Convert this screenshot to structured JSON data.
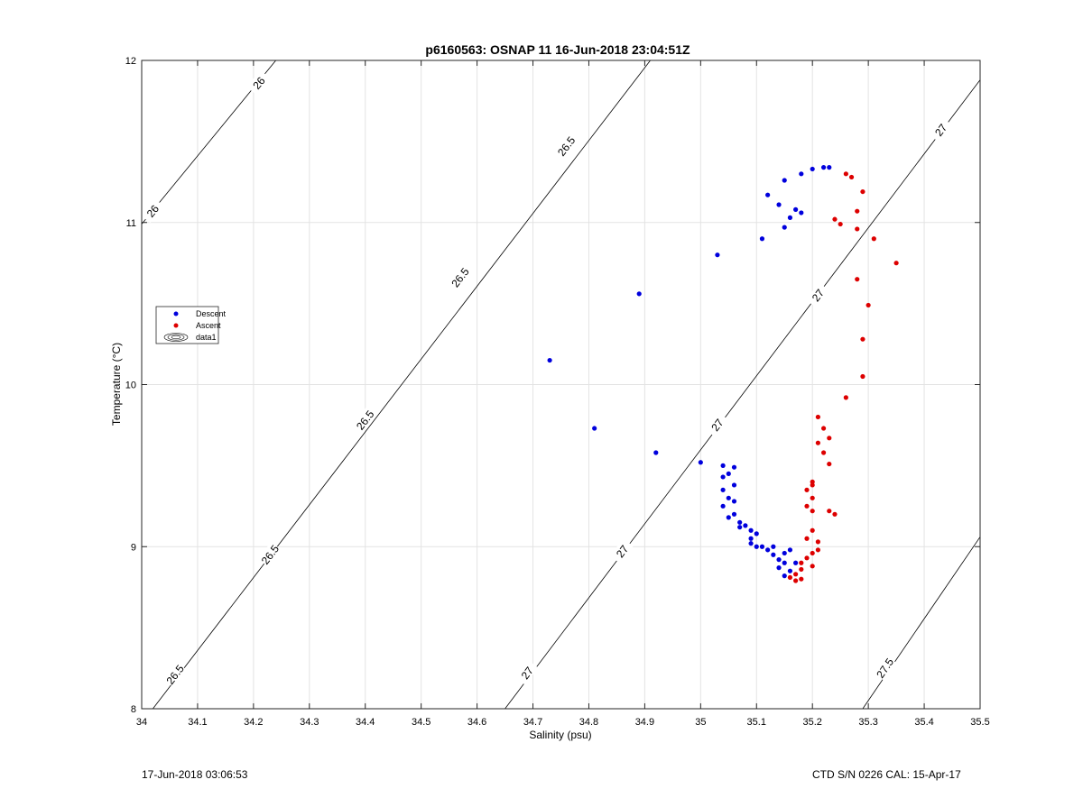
{
  "footer": {
    "left": "17-Jun-2018 03:06:53",
    "right": "CTD S/N 0226  CAL: 15-Apr-17"
  },
  "chart_data": {
    "type": "scatter",
    "title": "p6160563: OSNAP 11 16-Jun-2018 23:04:51Z",
    "xlabel": "Salinity (psu)",
    "ylabel": "Temperature (°C)",
    "xlim": [
      34,
      35.5
    ],
    "ylim": [
      8,
      12
    ],
    "xticks": [
      "34",
      "34.1",
      "34.2",
      "34.3",
      "34.4",
      "34.5",
      "34.6",
      "34.7",
      "34.8",
      "34.9",
      "35",
      "35.1",
      "35.2",
      "35.3",
      "35.4",
      "35.5"
    ],
    "yticks": [
      "8",
      "9",
      "10",
      "11",
      "12"
    ],
    "grid": true,
    "legend": {
      "placement": "left",
      "entries": [
        {
          "label": "Descent",
          "color": "#0000dd",
          "marker": "dot"
        },
        {
          "label": "Ascent",
          "color": "#dd0000",
          "marker": "dot"
        },
        {
          "label": "data1",
          "marker": "contour-icon"
        }
      ]
    },
    "density_contours": [
      {
        "sigma": "26",
        "lines": [
          [
            34,
            10.99,
            34.24,
            12
          ]
        ],
        "labels": [
          [
            34.02,
            11.07
          ],
          [
            34.21,
            11.86
          ]
        ]
      },
      {
        "sigma": "26.5",
        "lines": [
          [
            34.02,
            8,
            34.91,
            12
          ]
        ],
        "labels": [
          [
            34.06,
            8.21
          ],
          [
            34.23,
            8.95
          ],
          [
            34.4,
            9.78
          ],
          [
            34.57,
            10.66
          ],
          [
            34.76,
            11.47
          ]
        ]
      },
      {
        "sigma": "27",
        "lines": [
          [
            34.65,
            8,
            35.5,
            11.88
          ]
        ],
        "labels": [
          [
            34.69,
            8.22
          ],
          [
            34.86,
            8.97
          ],
          [
            35.03,
            9.75
          ],
          [
            35.21,
            10.55
          ],
          [
            35.43,
            11.57
          ]
        ]
      },
      {
        "sigma": "27.5",
        "lines": [
          [
            35.29,
            8,
            35.5,
            9.06
          ]
        ],
        "labels": [
          [
            35.33,
            8.25
          ]
        ]
      }
    ],
    "series": [
      {
        "name": "Descent",
        "color": "#0000dd",
        "points": [
          [
            34.73,
            10.15
          ],
          [
            34.81,
            9.73
          ],
          [
            34.89,
            10.56
          ],
          [
            34.92,
            9.58
          ],
          [
            35.0,
            9.52
          ],
          [
            35.03,
            10.8
          ],
          [
            35.11,
            10.9
          ],
          [
            35.12,
            11.17
          ],
          [
            35.14,
            11.11
          ],
          [
            35.15,
            11.26
          ],
          [
            35.15,
            10.97
          ],
          [
            35.16,
            11.03
          ],
          [
            35.17,
            11.08
          ],
          [
            35.18,
            11.06
          ],
          [
            35.18,
            11.3
          ],
          [
            35.2,
            11.33
          ],
          [
            35.22,
            11.34
          ],
          [
            35.23,
            11.34
          ],
          [
            35.04,
            9.5
          ],
          [
            35.04,
            9.43
          ],
          [
            35.04,
            9.35
          ],
          [
            35.05,
            9.45
          ],
          [
            35.05,
            9.3
          ],
          [
            35.04,
            9.25
          ],
          [
            35.05,
            9.18
          ],
          [
            35.06,
            9.49
          ],
          [
            35.06,
            9.38
          ],
          [
            35.06,
            9.28
          ],
          [
            35.06,
            9.2
          ],
          [
            35.07,
            9.15
          ],
          [
            35.07,
            9.12
          ],
          [
            35.08,
            9.13
          ],
          [
            35.09,
            9.1
          ],
          [
            35.09,
            9.05
          ],
          [
            35.1,
            9.08
          ],
          [
            35.09,
            9.02
          ],
          [
            35.1,
            9.0
          ],
          [
            35.11,
            9.0
          ],
          [
            35.12,
            8.98
          ],
          [
            35.13,
            8.95
          ],
          [
            35.13,
            9.0
          ],
          [
            35.14,
            8.92
          ],
          [
            35.14,
            8.87
          ],
          [
            35.15,
            8.82
          ],
          [
            35.15,
            8.9
          ],
          [
            35.15,
            8.96
          ],
          [
            35.16,
            8.85
          ],
          [
            35.16,
            8.98
          ],
          [
            35.17,
            8.9
          ]
        ]
      },
      {
        "name": "Ascent",
        "color": "#dd0000",
        "points": [
          [
            35.26,
            11.3
          ],
          [
            35.27,
            11.28
          ],
          [
            35.29,
            11.19
          ],
          [
            35.28,
            11.07
          ],
          [
            35.24,
            11.02
          ],
          [
            35.25,
            10.99
          ],
          [
            35.28,
            10.96
          ],
          [
            35.31,
            10.9
          ],
          [
            35.35,
            10.75
          ],
          [
            35.28,
            10.65
          ],
          [
            35.3,
            10.49
          ],
          [
            35.29,
            10.28
          ],
          [
            35.29,
            10.05
          ],
          [
            35.26,
            9.92
          ],
          [
            35.21,
            9.8
          ],
          [
            35.22,
            9.73
          ],
          [
            35.23,
            9.67
          ],
          [
            35.21,
            9.64
          ],
          [
            35.22,
            9.58
          ],
          [
            35.23,
            9.51
          ],
          [
            35.2,
            9.4
          ],
          [
            35.19,
            9.35
          ],
          [
            35.2,
            9.3
          ],
          [
            35.19,
            9.25
          ],
          [
            35.2,
            9.22
          ],
          [
            35.23,
            9.22
          ],
          [
            35.24,
            9.2
          ],
          [
            35.2,
            9.1
          ],
          [
            35.21,
            9.03
          ],
          [
            35.21,
            8.98
          ],
          [
            35.2,
            8.96
          ],
          [
            35.19,
            8.93
          ],
          [
            35.18,
            8.9
          ],
          [
            35.18,
            8.86
          ],
          [
            35.17,
            8.83
          ],
          [
            35.16,
            8.81
          ],
          [
            35.17,
            8.79
          ],
          [
            35.18,
            8.8
          ],
          [
            35.2,
            8.88
          ],
          [
            35.19,
            9.05
          ],
          [
            35.2,
            9.38
          ]
        ]
      }
    ]
  }
}
